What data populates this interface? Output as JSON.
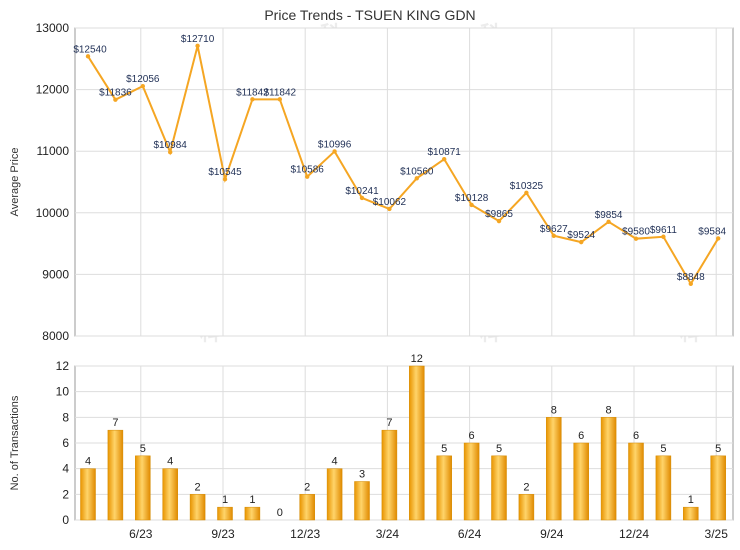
{
  "chart_data": [
    {
      "type": "line",
      "title": "Price Trends - TSUEN KING GDN",
      "ylabel": "Average Price",
      "ylim": [
        8000,
        13000
      ],
      "yticks": [
        "8000",
        "9000",
        "10000",
        "11000",
        "12000",
        "13000"
      ],
      "grid": true,
      "line_color": "#f5a623",
      "series": [
        {
          "values": [
            12540,
            11836,
            12056,
            10984,
            12710,
            10545,
            11842,
            11842,
            10586,
            10996,
            10241,
            10062,
            10560,
            10871,
            10128,
            9865,
            10325,
            9627,
            9524,
            9854,
            9580,
            9611,
            8848,
            9584
          ],
          "labels": [
            "$12540",
            "$11836",
            "$12056",
            "$10984",
            "$12710",
            "$10545",
            "$11842",
            "$11842",
            "$10586",
            "$10996",
            "$10241",
            "$10062",
            "$10560",
            "$10871",
            "$10128",
            "$9865",
            "$10325",
            "$9627",
            "$9524",
            "$9854",
            "$9580",
            "$9611",
            "$8848",
            "$9584"
          ]
        }
      ]
    },
    {
      "type": "bar",
      "ylabel": "No. of Transactions",
      "ylim": [
        0,
        12
      ],
      "yticks": [
        "0",
        "2",
        "4",
        "6",
        "8",
        "10",
        "12"
      ],
      "xticks": [
        "6/23",
        "9/23",
        "12/23",
        "3/24",
        "6/24",
        "9/24",
        "12/24",
        "3/25"
      ],
      "grid": true,
      "bar_color": "#f5a623",
      "values": [
        4,
        7,
        5,
        4,
        2,
        1,
        1,
        0,
        2,
        4,
        3,
        7,
        12,
        5,
        6,
        5,
        2,
        8,
        6,
        8,
        6,
        5,
        1,
        5
      ]
    }
  ]
}
